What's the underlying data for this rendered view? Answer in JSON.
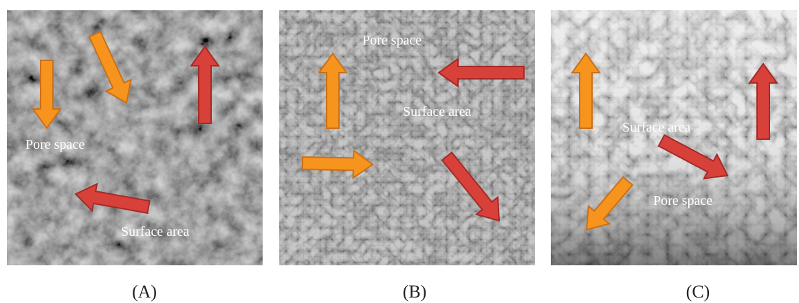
{
  "panels": [
    {
      "label": "(A)",
      "annotations": [
        "Pore space",
        "Surface area"
      ]
    },
    {
      "label": "(B)",
      "annotations": [
        "Pore space",
        "Surface area"
      ]
    },
    {
      "label": "(C)",
      "annotations": [
        "Surface area",
        "Pore space"
      ]
    }
  ]
}
